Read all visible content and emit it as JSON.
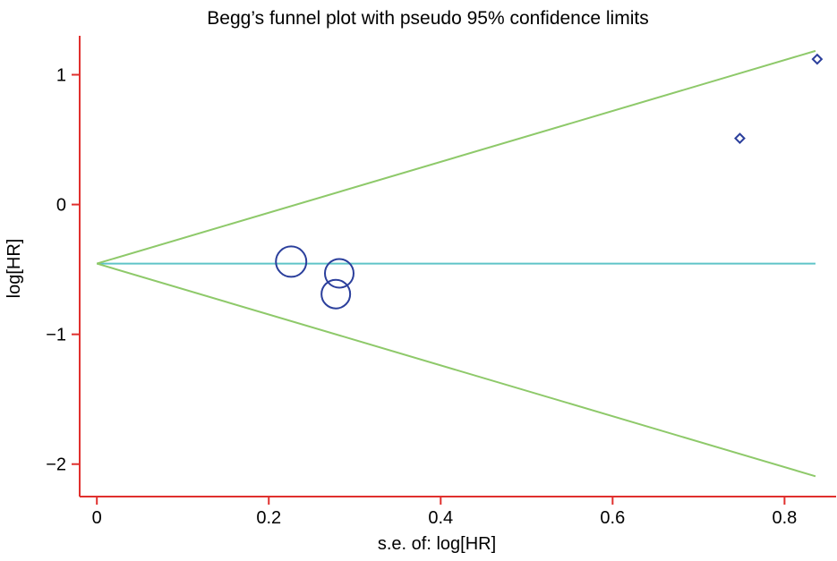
{
  "chart_data": {
    "type": "scatter",
    "title": "Begg’s funnel plot with pseudo 95% confidence limits",
    "xlabel": "s.e. of: log[HR]",
    "ylabel": "log[HR]",
    "xlim": [
      -0.02,
      0.86
    ],
    "ylim": [
      -2.25,
      1.3
    ],
    "x_ticks": [
      {
        "value": 0,
        "label": "0"
      },
      {
        "value": 0.2,
        "label": "0.2"
      },
      {
        "value": 0.4,
        "label": "0.4"
      },
      {
        "value": 0.6,
        "label": "0.6"
      },
      {
        "value": 0.8,
        "label": "0.8"
      }
    ],
    "y_ticks": [
      {
        "value": 1,
        "label": "1"
      },
      {
        "value": 0,
        "label": "0"
      },
      {
        "value": -1,
        "label": "−1"
      },
      {
        "value": -2,
        "label": "−2"
      }
    ],
    "pooled_estimate": -0.455,
    "se_max": 0.836,
    "studies": [
      {
        "se": 0.226,
        "loghr": -0.44,
        "size": "large"
      },
      {
        "se": 0.282,
        "loghr": -0.53,
        "size": "medium"
      },
      {
        "se": 0.278,
        "loghr": -0.69,
        "size": "medium"
      },
      {
        "se": 0.748,
        "loghr": 0.51,
        "size": "small"
      },
      {
        "se": 0.838,
        "loghr": 1.12,
        "size": "small"
      }
    ],
    "grid": false,
    "legend": "none",
    "colors": {
      "axis": "#e0302e",
      "ci_lines": "#8ec96a",
      "pooled_line": "#5fc4c8",
      "markers": "#2b3f9c"
    }
  }
}
